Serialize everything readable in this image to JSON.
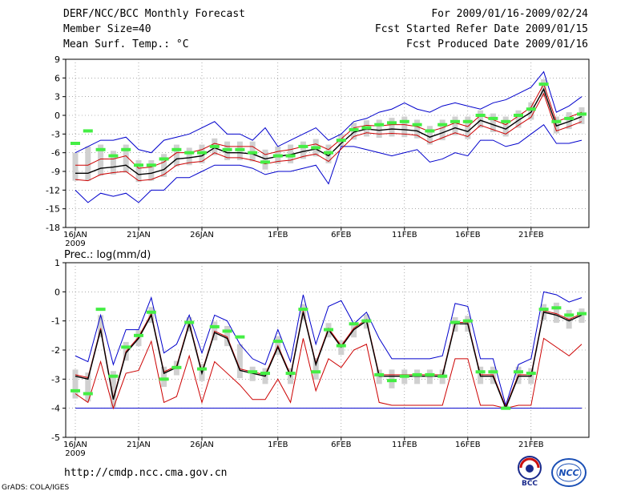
{
  "header": {
    "title": "DERF/NCC/BCC Monthly Forecast",
    "member_size": "Member Size=40",
    "variable1": "Mean Surf. Temp.: °C",
    "period": "For 2009/01/16-2009/02/24",
    "start_date": "Fcst Started Refer Date 2009/01/15",
    "produced_date": "Fcst Produced Date 2009/01/16"
  },
  "footer": {
    "url": "http://cmdp.ncc.cma.gov.cn",
    "credit": "GrADS: COLA/IGES",
    "logo1_text": "BCC",
    "logo2_text": "NCC"
  },
  "colors": {
    "upper": "#0000cc",
    "lower": "#cc0000",
    "mean": "#000000",
    "median": "#44ee44",
    "box": "#d0d0d0",
    "grid": "#777777"
  },
  "chart_data": [
    {
      "type": "line",
      "title": "Mean Surf. Temp.: °C",
      "x_tick_labels": [
        "16JAN\n2009",
        "21JAN",
        "26JAN",
        "1FEB",
        "6FEB",
        "11FEB",
        "16FEB",
        "21FEB"
      ],
      "x_tick_days": [
        0,
        5,
        10,
        16,
        21,
        26,
        31,
        36
      ],
      "ylim": [
        -18,
        9
      ],
      "y_ticks": [
        -18,
        -15,
        -12,
        -9,
        -6,
        -3,
        0,
        3,
        6,
        9
      ],
      "days": 40,
      "series": [
        {
          "name": "upper",
          "values": [
            -6,
            -5,
            -4,
            -4,
            -3.5,
            -5.5,
            -6,
            -4,
            -3.5,
            -3,
            -2,
            -1,
            -3,
            -3,
            -4,
            -2,
            -5,
            -4,
            -3,
            -2,
            -4,
            -3,
            -1,
            -0.5,
            0.5,
            1,
            2,
            1,
            0.5,
            1.5,
            2,
            1.5,
            1,
            2,
            2.5,
            3.5,
            4.5,
            7,
            0.5,
            1.5,
            3
          ]
        },
        {
          "name": "ensemble_mean",
          "values": [
            -9.3,
            -9.3,
            -8.5,
            -8.3,
            -8,
            -9.5,
            -9.3,
            -8.7,
            -7,
            -6.8,
            -6.5,
            -5.2,
            -6,
            -6,
            -6.2,
            -7,
            -6.6,
            -6.3,
            -5.8,
            -5.4,
            -6.5,
            -4.5,
            -2.7,
            -2.2,
            -2.4,
            -2.2,
            -2.3,
            -2.5,
            -3.5,
            -2.8,
            -2,
            -2.6,
            -0.8,
            -1.5,
            -2.2,
            -0.8,
            0.5,
            4.2,
            -1.7,
            -1,
            -0.2
          ]
        },
        {
          "name": "upper_spread",
          "values": [
            -8,
            -8,
            -7,
            -7,
            -6.5,
            -8.5,
            -8.3,
            -7.5,
            -6,
            -6,
            -5.5,
            -4.5,
            -5,
            -5,
            -5,
            -6.3,
            -5.8,
            -5.5,
            -5,
            -4.6,
            -5.5,
            -3.8,
            -2,
            -1.6,
            -1.7,
            -1.5,
            -1.5,
            -1.8,
            -2.6,
            -2,
            -1.2,
            -1.8,
            0,
            -0.7,
            -1.5,
            -0.1,
            1.3,
            5,
            -1,
            -0.3,
            0.5
          ]
        },
        {
          "name": "lower_spread",
          "values": [
            -10.3,
            -10.5,
            -9.5,
            -9.2,
            -9,
            -10.5,
            -10.3,
            -9.5,
            -8,
            -7.6,
            -7.4,
            -6,
            -6.8,
            -6.8,
            -7.2,
            -7.8,
            -7.4,
            -7.2,
            -6.6,
            -6.2,
            -7.4,
            -5.4,
            -3.4,
            -2.8,
            -3,
            -2.9,
            -3,
            -3.2,
            -4.4,
            -3.6,
            -2.8,
            -3.4,
            -1.6,
            -2.3,
            -3,
            -1.6,
            -0.3,
            3.5,
            -2.5,
            -1.8,
            -1
          ]
        },
        {
          "name": "lower",
          "values": [
            -12,
            -14,
            -12.5,
            -13,
            -12.5,
            -14,
            -12,
            -12,
            -10,
            -10,
            -9,
            -8,
            -8,
            -8,
            -8.5,
            -9.5,
            -9,
            -9,
            -8.5,
            -8,
            -11,
            -5,
            -5,
            -5.5,
            -6,
            -6.5,
            -6,
            -5.5,
            -7.5,
            -7,
            -6,
            -6.5,
            -4,
            -4,
            -5,
            -4.5,
            -3,
            -1.5,
            -4.5,
            -4.5,
            -4
          ]
        },
        {
          "name": "median",
          "values": [
            -4.5,
            -2.5,
            -5.5,
            -6.5,
            -5.5,
            -8,
            -8,
            -7,
            -5.5,
            -6,
            -6,
            -5,
            -5.5,
            -5.5,
            -6,
            -7.5,
            -6.5,
            -6.5,
            -5,
            -5.2,
            -6,
            -4,
            -2.3,
            -2,
            -1.5,
            -1.2,
            -1,
            -1.5,
            -2.5,
            -1.5,
            -1,
            -1,
            0,
            -0.5,
            -1,
            0,
            1,
            5,
            -1,
            -0.5,
            0.2
          ]
        }
      ]
    },
    {
      "type": "line",
      "title": "Prec.: log(mm/d)",
      "x_tick_labels": [
        "16JAN\n2009",
        "21JAN",
        "26JAN",
        "1FEB",
        "6FEB",
        "11FEB",
        "16FEB",
        "21FEB"
      ],
      "x_tick_days": [
        0,
        5,
        10,
        16,
        21,
        26,
        31,
        36
      ],
      "ylim": [
        -5,
        1
      ],
      "y_ticks": [
        -5,
        -4,
        -3,
        -2,
        -1,
        0,
        1
      ],
      "days": 40,
      "series": [
        {
          "name": "upper",
          "values": [
            -2.2,
            -2.4,
            -0.8,
            -2.5,
            -1.3,
            -1.3,
            -0.2,
            -2.1,
            -1.8,
            -0.8,
            -2.1,
            -0.8,
            -1,
            -1.8,
            -2.3,
            -2.5,
            -1.3,
            -2.4,
            -0.1,
            -1.8,
            -0.5,
            -0.3,
            -1.1,
            -0.7,
            -1.6,
            -2.3,
            -2.3,
            -2.3,
            -2.3,
            -2.2,
            -0.4,
            -0.5,
            -2.3,
            -2.3,
            -3.9,
            -2.5,
            -2.3,
            0,
            -0.1,
            -0.35,
            -0.2
          ]
        },
        {
          "name": "ensemble_mean",
          "values": [
            -2.9,
            -3,
            -1.3,
            -3.7,
            -2.1,
            -1.6,
            -0.8,
            -2.8,
            -2.6,
            -1.1,
            -2.8,
            -1.4,
            -1.6,
            -2.7,
            -2.8,
            -2.9,
            -1.9,
            -2.9,
            -0.7,
            -2.5,
            -1.3,
            -1.9,
            -1.3,
            -1,
            -2.9,
            -2.9,
            -2.9,
            -2.9,
            -2.9,
            -2.9,
            -1.1,
            -1.1,
            -2.9,
            -2.9,
            -4,
            -2.9,
            -2.9,
            -0.7,
            -0.8,
            -1,
            -0.8
          ]
        },
        {
          "name": "upper_spread",
          "values": [
            -2.85,
            -2.95,
            -1.25,
            -3.65,
            -2.05,
            -1.55,
            -0.75,
            -2.75,
            -2.55,
            -1.05,
            -2.75,
            -1.35,
            -1.55,
            -2.65,
            -2.75,
            -2.85,
            -1.85,
            -2.85,
            -0.65,
            -2.45,
            -1.25,
            -1.85,
            -1.25,
            -0.95,
            -2.85,
            -2.85,
            -2.85,
            -2.85,
            -2.85,
            -2.85,
            -1.05,
            -1.05,
            -2.85,
            -2.85,
            -3.95,
            -2.85,
            -2.85,
            -0.65,
            -0.75,
            -0.95,
            -0.75
          ]
        },
        {
          "name": "lower_spread",
          "values": [
            -3.5,
            -3.8,
            -2.4,
            -4,
            -2.8,
            -2.7,
            -1.7,
            -3.8,
            -3.6,
            -2.2,
            -3.8,
            -2.4,
            -2.8,
            -3.2,
            -3.7,
            -3.7,
            -3,
            -3.8,
            -1.6,
            -3.4,
            -2.3,
            -2.6,
            -2,
            -1.8,
            -3.8,
            -3.9,
            -3.9,
            -3.9,
            -3.9,
            -3.9,
            -2.3,
            -2.3,
            -3.9,
            -3.9,
            -4,
            -3.9,
            -3.9,
            -1.6,
            -1.9,
            -2.2,
            -1.8
          ]
        },
        {
          "name": "lower",
          "values": [
            -4,
            -4,
            -4,
            -4,
            -4,
            -4,
            -4,
            -4,
            -4,
            -4,
            -4,
            -4,
            -4,
            -4,
            -4,
            -4,
            -4,
            -4,
            -4,
            -4,
            -4,
            -4,
            -4,
            -4,
            -4,
            -4,
            -4,
            -4,
            -4,
            -4,
            -4,
            -4,
            -4,
            -4,
            -4,
            -4,
            -4,
            -4,
            -4,
            -4,
            -4
          ]
        },
        {
          "name": "median",
          "values": [
            -3.4,
            -3.5,
            -0.6,
            -2.9,
            -1.9,
            -1.5,
            -0.7,
            -3,
            -2.6,
            -1.05,
            -2.65,
            -1.2,
            -1.35,
            -1.55,
            -2.75,
            -2.8,
            -1.7,
            -2.8,
            -0.6,
            -2.75,
            -1.3,
            -1.85,
            -1.1,
            -1,
            -2.85,
            -3.05,
            -2.9,
            -2.85,
            -2.85,
            -2.9,
            -1.05,
            -1,
            -2.75,
            -2.75,
            -4,
            -2.75,
            -2.8,
            -0.6,
            -0.55,
            -0.8,
            -0.75
          ]
        }
      ]
    }
  ]
}
